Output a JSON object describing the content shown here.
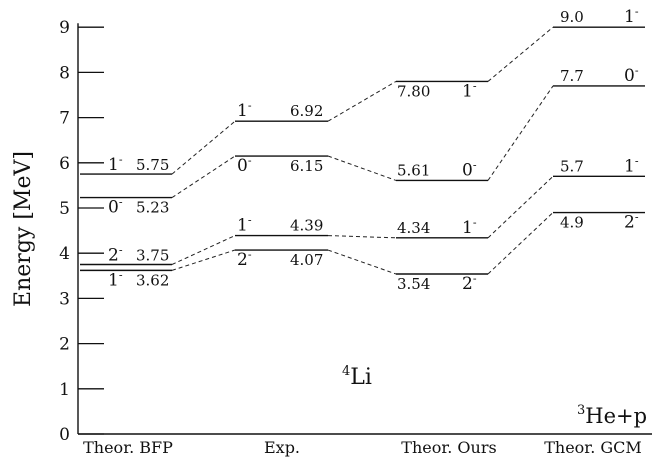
{
  "chart_data": {
    "type": "level-diagram",
    "ylabel": "Energy [MeV]",
    "ylim": [
      0,
      9
    ],
    "yticks": [
      0,
      1,
      2,
      3,
      4,
      5,
      6,
      7,
      8,
      9
    ],
    "columns": [
      "Theor. BFP",
      "Exp.",
      "Theor. Ours",
      "Theor. GCM"
    ],
    "series": [
      {
        "column": "Theor. BFP",
        "levels": [
          {
            "E": 5.75,
            "value_label": "5.75",
            "jpi": "1",
            "parity": "-"
          },
          {
            "E": 5.23,
            "value_label": "5.23",
            "jpi": "0",
            "parity": "-"
          },
          {
            "E": 3.75,
            "value_label": "3.75",
            "jpi": "2",
            "parity": "-"
          },
          {
            "E": 3.62,
            "value_label": "3.62",
            "jpi": "1",
            "parity": "-"
          }
        ]
      },
      {
        "column": "Exp.",
        "levels": [
          {
            "E": 6.92,
            "value_label": "6.92",
            "jpi": "1",
            "parity": "-"
          },
          {
            "E": 6.15,
            "value_label": "6.15",
            "jpi": "0",
            "parity": "-"
          },
          {
            "E": 4.39,
            "value_label": "4.39",
            "jpi": "1",
            "parity": "-"
          },
          {
            "E": 4.07,
            "value_label": "4.07",
            "jpi": "2",
            "parity": "-"
          }
        ]
      },
      {
        "column": "Theor. Ours",
        "levels": [
          {
            "E": 7.8,
            "value_label": "7.80",
            "jpi": "1",
            "parity": "-"
          },
          {
            "E": 5.61,
            "value_label": "5.61",
            "jpi": "0",
            "parity": "-"
          },
          {
            "E": 4.34,
            "value_label": "4.34",
            "jpi": "1",
            "parity": "-"
          },
          {
            "E": 3.54,
            "value_label": "3.54",
            "jpi": "2",
            "parity": "-"
          }
        ]
      },
      {
        "column": "Theor. GCM",
        "levels": [
          {
            "E": 9.0,
            "value_label": "9.0",
            "jpi": "1",
            "parity": "-"
          },
          {
            "E": 7.7,
            "value_label": "7.7",
            "jpi": "0",
            "parity": "-"
          },
          {
            "E": 5.7,
            "value_label": "5.7",
            "jpi": "1",
            "parity": "-"
          },
          {
            "E": 4.9,
            "value_label": "4.9",
            "jpi": "2",
            "parity": "-"
          }
        ]
      }
    ],
    "connections": [
      {
        "from": [
          0,
          0
        ],
        "to": [
          1,
          0
        ]
      },
      {
        "from": [
          0,
          1
        ],
        "to": [
          1,
          1
        ]
      },
      {
        "from": [
          0,
          2
        ],
        "to": [
          1,
          2
        ]
      },
      {
        "from": [
          0,
          3
        ],
        "to": [
          1,
          3
        ]
      },
      {
        "from": [
          1,
          0
        ],
        "to": [
          2,
          0
        ]
      },
      {
        "from": [
          1,
          1
        ],
        "to": [
          2,
          1
        ]
      },
      {
        "from": [
          1,
          2
        ],
        "to": [
          2,
          2
        ]
      },
      {
        "from": [
          1,
          3
        ],
        "to": [
          2,
          3
        ]
      },
      {
        "from": [
          2,
          0
        ],
        "to": [
          3,
          0
        ]
      },
      {
        "from": [
          2,
          1
        ],
        "to": [
          3,
          1
        ]
      },
      {
        "from": [
          2,
          2
        ],
        "to": [
          3,
          2
        ]
      },
      {
        "from": [
          2,
          3
        ],
        "to": [
          3,
          3
        ]
      }
    ],
    "annotations": {
      "nucleus": {
        "sup": "4",
        "base": "Li"
      },
      "threshold": {
        "sup": "3",
        "base": "He+p"
      }
    }
  }
}
